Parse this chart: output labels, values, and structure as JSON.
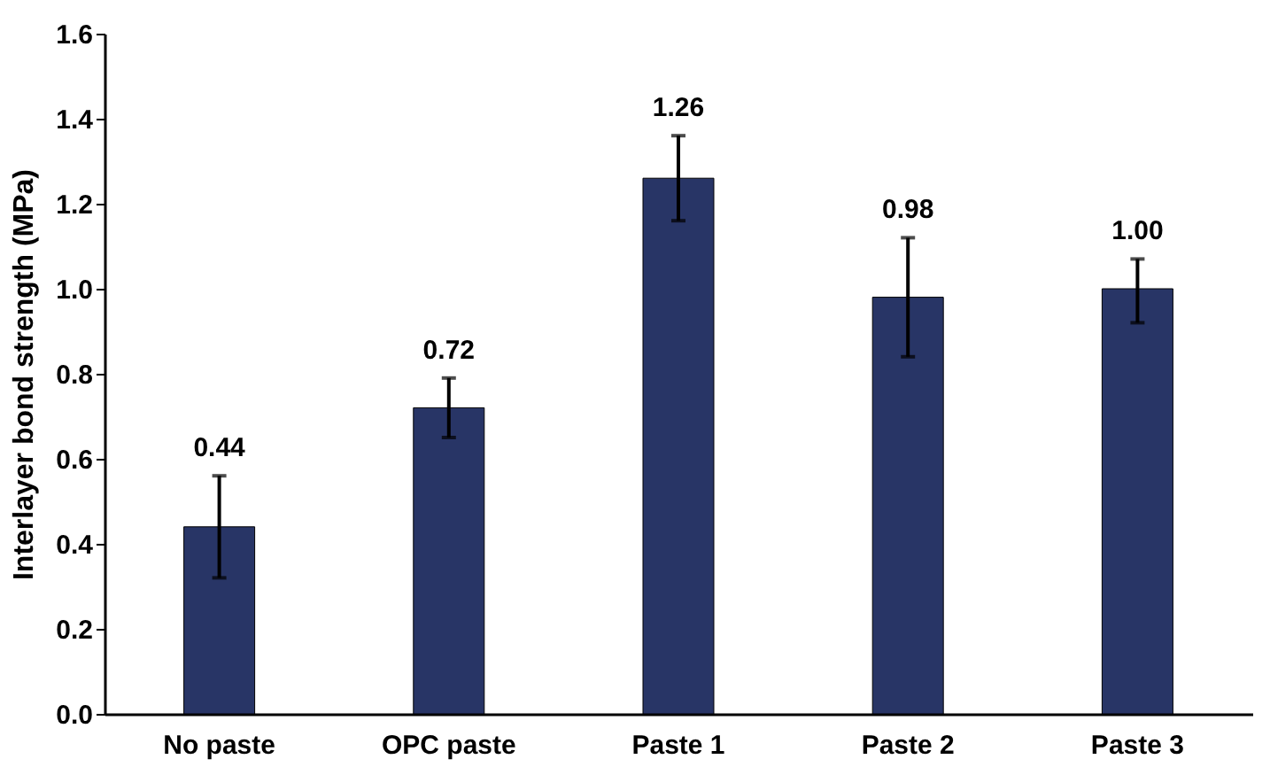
{
  "chart_data": {
    "type": "bar",
    "ylabel": "Interlayer bond strength (MPa)",
    "categories": [
      "No paste",
      "OPC paste",
      "Paste 1",
      "Paste 2",
      "Paste 3"
    ],
    "values": [
      0.44,
      0.72,
      1.26,
      0.98,
      1.0
    ],
    "value_labels": [
      "0.44",
      "0.72",
      "1.26",
      "0.98",
      "1.00"
    ],
    "errors": [
      [
        0.32,
        0.56
      ],
      [
        0.65,
        0.79
      ],
      [
        1.16,
        1.36
      ],
      [
        0.84,
        1.12
      ],
      [
        0.92,
        1.07
      ]
    ],
    "color": "#283566",
    "ylim": [
      0,
      1.6
    ],
    "yticks": [
      {
        "value": 0,
        "label": "0.0"
      },
      {
        "value": 0.2,
        "label": "0.2"
      },
      {
        "value": 0.4,
        "label": "0.4"
      },
      {
        "value": 0.6,
        "label": "0.6"
      },
      {
        "value": 0.8,
        "label": "0.8"
      },
      {
        "value": 1.0,
        "label": "1.0"
      },
      {
        "value": 1.2,
        "label": "1.2"
      },
      {
        "value": 1.4,
        "label": "1.4"
      },
      {
        "value": 1.6,
        "label": "1.6"
      }
    ],
    "grid": false
  }
}
